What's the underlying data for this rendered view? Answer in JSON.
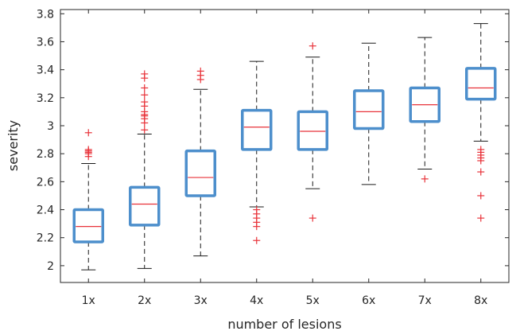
{
  "chart_data": {
    "type": "boxplot",
    "xlabel": "number of lesions",
    "ylabel": "severity",
    "ylim": [
      1.88,
      3.83
    ],
    "yticks": [
      2,
      2.2,
      2.4,
      2.6,
      2.8,
      3,
      3.2,
      3.4,
      3.6,
      3.8
    ],
    "ytick_labels": [
      "2",
      "2.2",
      "2.4",
      "2.6",
      "2.8",
      "3",
      "3.2",
      "3.4",
      "3.6",
      "3.8"
    ],
    "categories": [
      "1x",
      "2x",
      "3x",
      "4x",
      "5x",
      "6x",
      "7x",
      "8x"
    ],
    "grid": false,
    "colors": {
      "box": "#4d8fcc",
      "median": "#e8333a",
      "whisker": "#1a1a1a",
      "outlier": "#e8333a",
      "axis": "#262626"
    },
    "boxes": [
      {
        "label": "1x",
        "whisker_low": 1.97,
        "q1": 2.17,
        "median": 2.28,
        "q3": 2.4,
        "whisker_high": 2.73,
        "outliers": [
          2.78,
          2.8,
          2.81,
          2.82,
          2.83,
          2.95
        ]
      },
      {
        "label": "2x",
        "whisker_low": 1.98,
        "q1": 2.29,
        "median": 2.44,
        "q3": 2.56,
        "whisker_high": 2.94,
        "outliers": [
          2.97,
          3.02,
          3.05,
          3.07,
          3.08,
          3.1,
          3.14,
          3.17,
          3.22,
          3.27,
          3.34,
          3.37
        ]
      },
      {
        "label": "3x",
        "whisker_low": 2.07,
        "q1": 2.5,
        "median": 2.63,
        "q3": 2.82,
        "whisker_high": 3.26,
        "outliers": [
          3.33,
          3.36,
          3.39
        ]
      },
      {
        "label": "4x",
        "whisker_low": 2.42,
        "q1": 2.83,
        "median": 2.99,
        "q3": 3.11,
        "whisker_high": 3.46,
        "outliers": [
          2.4,
          2.37,
          2.34,
          2.31,
          2.28,
          2.18
        ]
      },
      {
        "label": "5x",
        "whisker_low": 2.55,
        "q1": 2.83,
        "median": 2.96,
        "q3": 3.1,
        "whisker_high": 3.49,
        "outliers": [
          2.34,
          3.57
        ]
      },
      {
        "label": "6x",
        "whisker_low": 2.58,
        "q1": 2.98,
        "median": 3.1,
        "q3": 3.25,
        "whisker_high": 3.59,
        "outliers": []
      },
      {
        "label": "7x",
        "whisker_low": 2.69,
        "q1": 3.03,
        "median": 3.15,
        "q3": 3.27,
        "whisker_high": 3.63,
        "outliers": [
          2.62
        ]
      },
      {
        "label": "8x",
        "whisker_low": 2.89,
        "q1": 3.19,
        "median": 3.27,
        "q3": 3.41,
        "whisker_high": 3.73,
        "outliers": [
          2.77,
          2.79,
          2.81,
          2.83,
          2.75,
          2.67,
          2.5,
          2.34
        ]
      }
    ]
  }
}
